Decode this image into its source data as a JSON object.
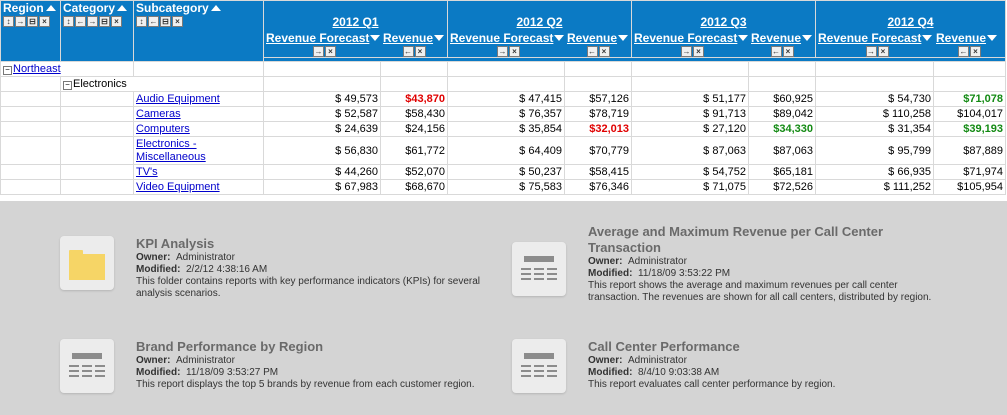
{
  "grid": {
    "headers": {
      "region": "Region",
      "category": "Category",
      "subcategory": "Subcategory",
      "quarters": [
        "2012 Q1",
        "2012 Q2",
        "2012 Q3",
        "2012 Q4"
      ],
      "metric_forecast": "Revenue Forecast",
      "metric_revenue": "Revenue"
    },
    "region_label": "Northeast",
    "category_label": "Electronics",
    "rows": [
      {
        "name": "Audio Equipment",
        "cells": [
          {
            "v": "$ 49,573"
          },
          {
            "v": "$43,870",
            "s": "red"
          },
          {
            "v": "$ 47,415"
          },
          {
            "v": "$57,126"
          },
          {
            "v": "$ 51,177"
          },
          {
            "v": "$60,925"
          },
          {
            "v": "$ 54,730"
          },
          {
            "v": "$71,078",
            "s": "green"
          }
        ]
      },
      {
        "name": "Cameras",
        "cells": [
          {
            "v": "$ 52,587"
          },
          {
            "v": "$58,430"
          },
          {
            "v": "$ 76,357"
          },
          {
            "v": "$78,719"
          },
          {
            "v": "$ 91,713"
          },
          {
            "v": "$89,042"
          },
          {
            "v": "$ 110,258"
          },
          {
            "v": "$104,017"
          }
        ]
      },
      {
        "name": "Computers",
        "cells": [
          {
            "v": "$ 24,639"
          },
          {
            "v": "$24,156"
          },
          {
            "v": "$ 35,854"
          },
          {
            "v": "$32,013",
            "s": "red"
          },
          {
            "v": "$ 27,120"
          },
          {
            "v": "$34,330",
            "s": "green"
          },
          {
            "v": "$ 31,354"
          },
          {
            "v": "$39,193",
            "s": "green"
          }
        ]
      },
      {
        "name": "Electronics - Miscellaneous",
        "line1": "Electronics -",
        "line2": "Miscellaneous",
        "cells": [
          {
            "v": "$ 56,830"
          },
          {
            "v": "$61,772"
          },
          {
            "v": "$ 64,409"
          },
          {
            "v": "$70,779"
          },
          {
            "v": "$ 87,063"
          },
          {
            "v": "$87,063"
          },
          {
            "v": "$ 95,799"
          },
          {
            "v": "$87,889"
          }
        ]
      },
      {
        "name": "TV's",
        "cells": [
          {
            "v": "$ 44,260"
          },
          {
            "v": "$52,070"
          },
          {
            "v": "$ 50,237"
          },
          {
            "v": "$58,415"
          },
          {
            "v": "$ 54,752"
          },
          {
            "v": "$65,181"
          },
          {
            "v": "$ 66,935"
          },
          {
            "v": "$71,974"
          }
        ]
      },
      {
        "name": "Video Equipment",
        "cells": [
          {
            "v": "$ 67,983"
          },
          {
            "v": "$68,670"
          },
          {
            "v": "$ 75,583"
          },
          {
            "v": "$76,346"
          },
          {
            "v": "$ 71,075"
          },
          {
            "v": "$72,526"
          },
          {
            "v": "$ 111,252"
          },
          {
            "v": "$105,954"
          }
        ]
      }
    ]
  },
  "colors": {
    "header_bg": "#0b7ac4",
    "negative": "#e00000",
    "positive": "#138a13",
    "link": "#0000cc"
  },
  "cards": [
    {
      "icon": "folder-icon",
      "title": "KPI Analysis",
      "owner_label": "Owner:",
      "owner": "Administrator",
      "modified_label": "Modified:",
      "modified": "2/2/12 4:38:16 AM",
      "desc": "This folder contains reports with key performance indicators (KPIs) for several analysis scenarios."
    },
    {
      "icon": "report-icon",
      "title": "Average and Maximum Revenue per Call Center Transaction",
      "owner_label": "Owner:",
      "owner": "Administrator",
      "modified_label": "Modified:",
      "modified": "11/18/09 3:53:22 PM",
      "desc": "This report shows the average and maximum revenues per call center transaction.  The revenues are shown for all call centers, distributed by region."
    },
    {
      "icon": "report-icon",
      "title": "Brand Performance by Region",
      "owner_label": "Owner:",
      "owner": "Administrator",
      "modified_label": "Modified:",
      "modified": "11/18/09 3:53:27 PM",
      "desc": "This report displays the top 5 brands by revenue from each customer region."
    },
    {
      "icon": "report-icon",
      "title": "Call Center Performance",
      "owner_label": "Owner:",
      "owner": "Administrator",
      "modified_label": "Modified:",
      "modified": "8/4/10 9:03:38 AM",
      "desc": "This report evaluates call center performance by region."
    }
  ]
}
